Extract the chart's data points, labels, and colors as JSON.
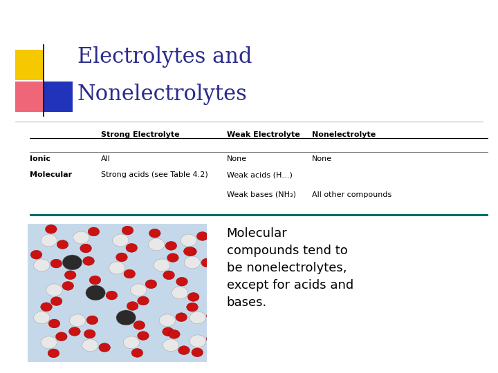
{
  "title_line1": "Electrolytes and",
  "title_line2": "Nonelectrolytes",
  "title_color": "#2B2B8C",
  "bg_color": "#FFFFFF",
  "table_header": [
    "",
    "Strong Electrolyte",
    "Weak Electrolyte",
    "Nonelectrolyte"
  ],
  "table_rows": [
    [
      "Ionic",
      "All",
      "None",
      "None"
    ],
    [
      "Molecular",
      "Strong acids (see Table 4.2)",
      "Weak acids (H…)",
      ""
    ],
    [
      "",
      "",
      "Weak bases (NH₃)",
      "All other compounds"
    ]
  ],
  "caption": "Molecular\ncompounds tend to\nbe nonelectrolytes,\nexcept for acids and\nbases.",
  "caption_color": "#000000",
  "caption_fontsize": 13,
  "title_fontsize": 22,
  "table_fontsize": 8.0,
  "decorator_colors": {
    "yellow": "#F5C800",
    "red": "#EE6677",
    "blue": "#2233BB"
  },
  "mol_bg": "#C5D8EA",
  "teal_line": "#006B6B"
}
